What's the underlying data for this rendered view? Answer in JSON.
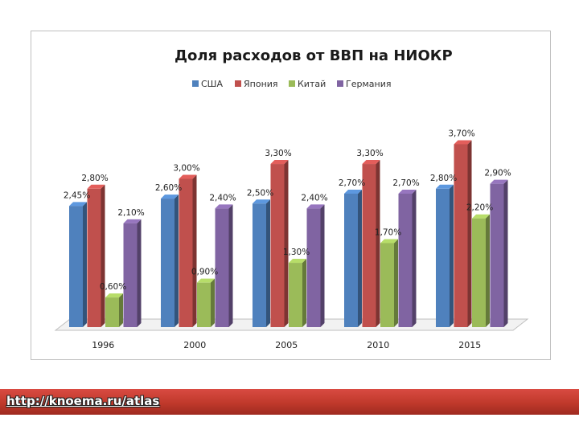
{
  "colors": {
    "series": [
      "#4f81bd",
      "#c0504d",
      "#9bbb59",
      "#8064a2"
    ],
    "footer_band": "#c0392b"
  },
  "footer": {
    "link_text": "http://knoema.ru/atlas"
  },
  "chart_data": {
    "type": "bar",
    "style": "3d-clustered-column",
    "title": "Доля расходов от ВВП на НИОКР",
    "legend_position": "top",
    "categories": [
      "1996",
      "2000",
      "2005",
      "2010",
      "2015"
    ],
    "ylim": [
      0,
      3.8
    ],
    "series": [
      {
        "name": "США",
        "values": [
          2.45,
          2.6,
          2.5,
          2.7,
          2.8
        ],
        "labels": [
          "2,45%",
          "2,60%",
          "2,50%",
          "2,70%",
          "2,80%"
        ]
      },
      {
        "name": "Япония",
        "values": [
          2.8,
          3.0,
          3.3,
          3.3,
          3.7
        ],
        "labels": [
          "2,80%",
          "3,00%",
          "3,30%",
          "3,30%",
          "3,70%"
        ]
      },
      {
        "name": "Китай",
        "values": [
          0.6,
          0.9,
          1.3,
          1.7,
          2.2
        ],
        "labels": [
          "0,60%",
          "0,90%",
          "1,30%",
          "1,70%",
          "2,20%"
        ]
      },
      {
        "name": "Германия",
        "values": [
          2.1,
          2.4,
          2.4,
          2.7,
          2.9
        ],
        "labels": [
          "2,10%",
          "2,40%",
          "2,40%",
          "2,70%",
          "2,90%"
        ]
      }
    ]
  }
}
